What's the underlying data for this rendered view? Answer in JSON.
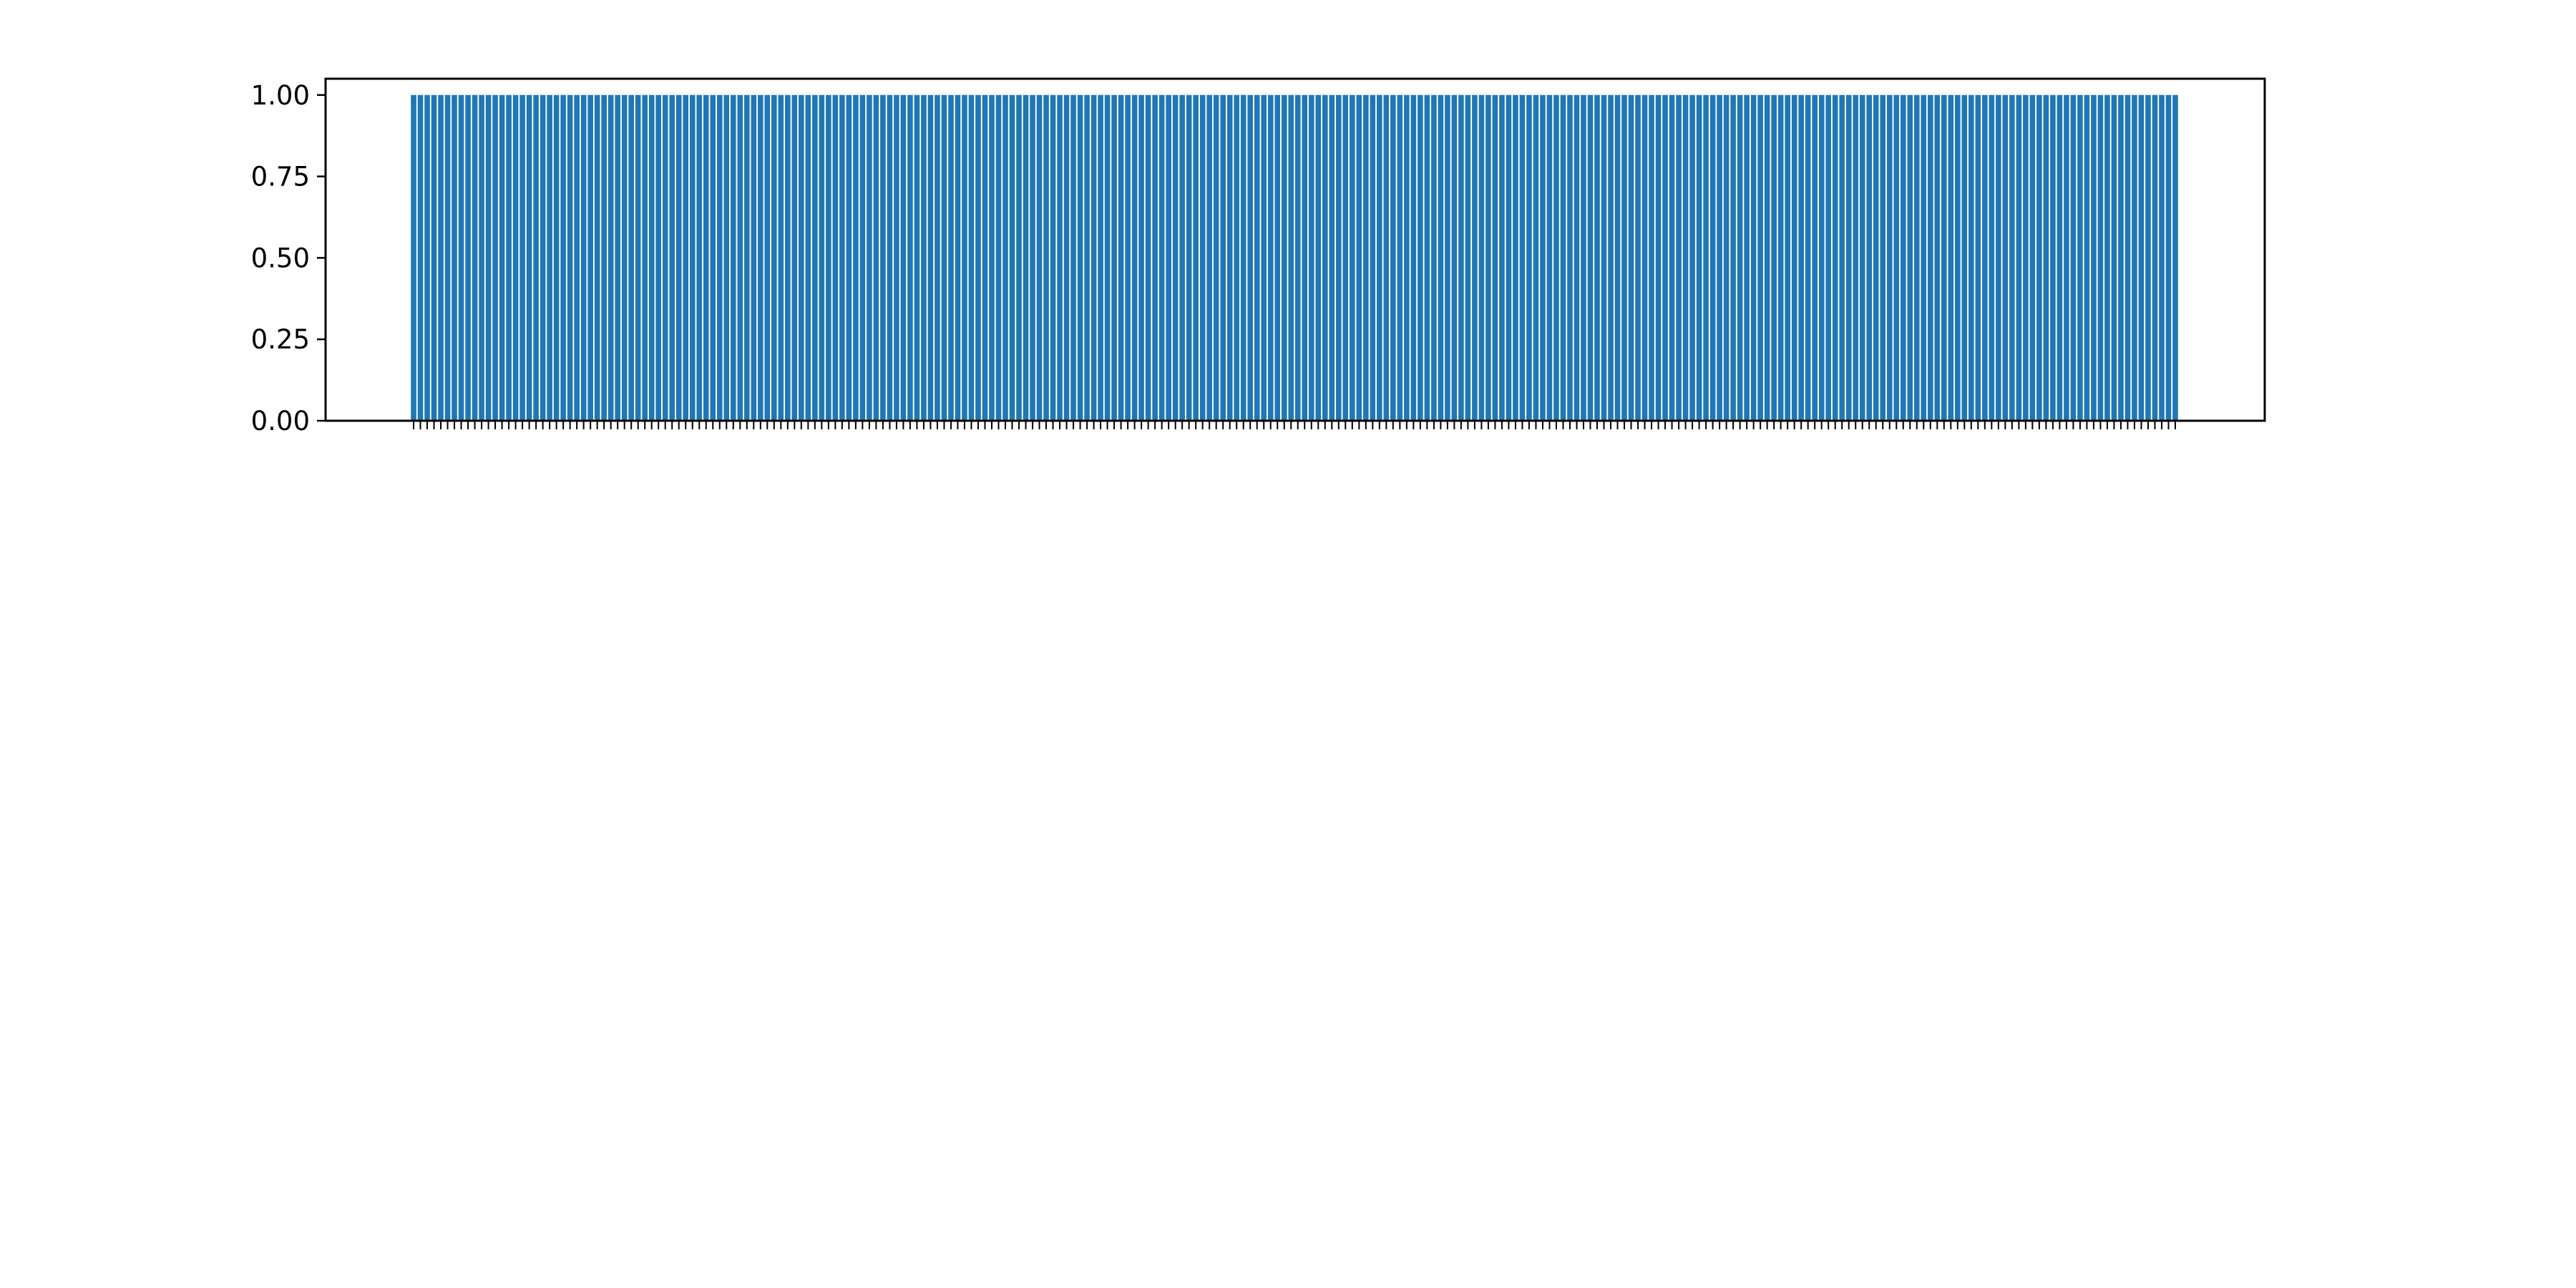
{
  "chart_data": {
    "type": "bar",
    "title": "",
    "xlabel": "",
    "ylabel": "",
    "ylim": [
      0,
      1.05
    ],
    "yticks": [
      "0.00",
      "0.25",
      "0.50",
      "0.75",
      "1.00"
    ],
    "bar_count": 260,
    "bar_value": 1.0,
    "bar_color": "#1f77b4",
    "grid": false,
    "legend": "none",
    "categories": [],
    "values": []
  }
}
